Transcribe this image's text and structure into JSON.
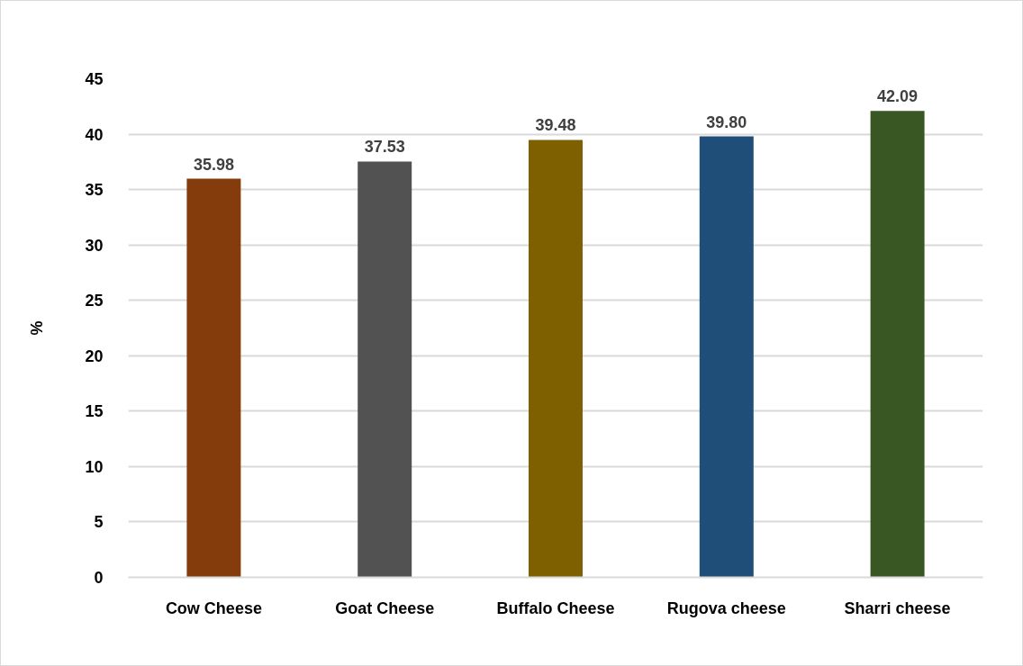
{
  "chart_data": {
    "type": "bar",
    "ylabel": "%",
    "categories": [
      "Cow Cheese",
      "Goat Cheese",
      "Buffalo Cheese",
      "Rugova cheese",
      "Sharri cheese"
    ],
    "values": [
      35.98,
      37.53,
      39.48,
      39.8,
      42.09
    ],
    "value_labels": [
      "35.98",
      "37.53",
      "39.48",
      "39.80",
      "42.09"
    ],
    "colors": [
      "#843c0c",
      "#525252",
      "#7f6000",
      "#1f4e79",
      "#385723"
    ],
    "ylim": [
      0,
      45
    ],
    "yticks": [
      0,
      5,
      10,
      15,
      20,
      25,
      30,
      35,
      40,
      45
    ],
    "grid": "y"
  }
}
